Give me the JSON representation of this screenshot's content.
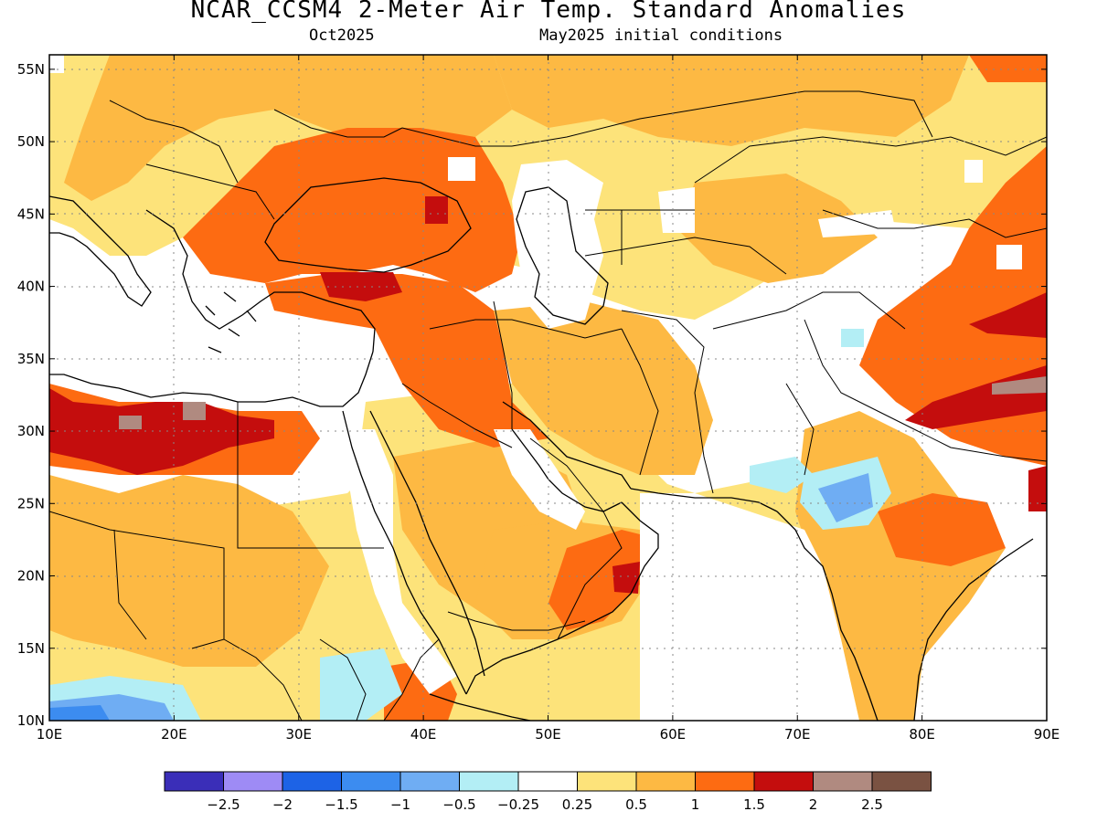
{
  "header": {
    "title": "NCAR_CCSM4 2-Meter Air Temp. Standard Anomalies",
    "valid_month": "Oct2025",
    "initial_conditions": "May2025 initial conditions"
  },
  "map": {
    "lon_range": [
      10,
      90
    ],
    "lat_range": [
      10,
      56
    ],
    "lat_labels": [
      "10N",
      "15N",
      "20N",
      "25N",
      "30N",
      "35N",
      "40N",
      "45N",
      "50N",
      "55N"
    ],
    "lon_labels": [
      "10E",
      "20E",
      "30E",
      "40E",
      "50E",
      "60E",
      "70E",
      "80E",
      "90E"
    ],
    "grid_style": "dotted"
  },
  "legend": {
    "colors": [
      "#3a2eb8",
      "#9e8bf5",
      "#1d63e6",
      "#3c8cf0",
      "#6fadf3",
      "#b3eef5",
      "#ffffff",
      "#fde37a",
      "#fdb943",
      "#fd6b12",
      "#c40d0d",
      "#b08a80",
      "#7a5242"
    ],
    "labels": [
      "−2.5",
      "−2",
      "−1.5",
      "−1",
      "−0.5",
      "−0.25",
      "0.25",
      "0.5",
      "1",
      "1.5",
      "2",
      "2.5"
    ]
  }
}
